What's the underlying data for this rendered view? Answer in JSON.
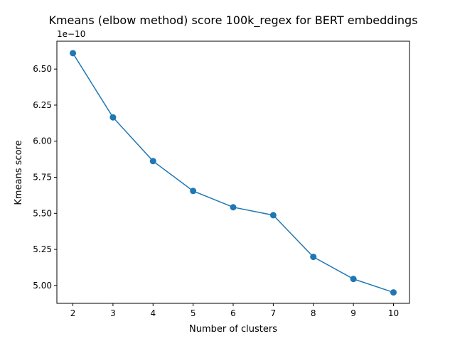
{
  "chart_data": {
    "type": "line",
    "title": "Kmeans (elbow method) score 100k_regex for BERT embeddings",
    "xlabel": "Number of clusters",
    "ylabel": "Kmeans score",
    "y_offset_label": "1e−10",
    "x": [
      2,
      3,
      4,
      5,
      6,
      7,
      8,
      9,
      10
    ],
    "series": [
      {
        "values": [
          6.61,
          6.165,
          5.862,
          5.655,
          5.542,
          5.487,
          5.198,
          5.045,
          4.952
        ],
        "color": "#1f77b4"
      }
    ],
    "xlim": [
      1.6,
      10.4
    ],
    "ylim": [
      4.876,
      6.693
    ],
    "x_ticks": [
      2,
      3,
      4,
      5,
      6,
      7,
      8,
      9,
      10
    ],
    "x_tick_labels": [
      "2",
      "3",
      "4",
      "5",
      "6",
      "7",
      "8",
      "9",
      "10"
    ],
    "y_ticks": [
      5.0,
      5.25,
      5.5,
      5.75,
      6.0,
      6.25,
      6.5
    ],
    "y_tick_labels": [
      "5.00",
      "5.25",
      "5.50",
      "5.75",
      "6.00",
      "6.25",
      "6.50"
    ],
    "grid": false,
    "markers": true
  }
}
